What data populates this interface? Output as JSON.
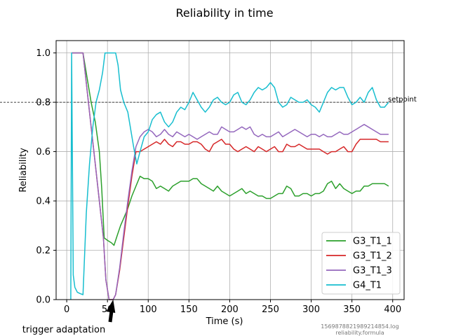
{
  "chart_data": {
    "type": "line",
    "title": "Reliability in time",
    "xlabel": "Time (s)",
    "ylabel": "Reliability",
    "xlim": [
      -13,
      414
    ],
    "ylim": [
      0.0,
      1.05
    ],
    "xticks": [
      0,
      50,
      100,
      150,
      200,
      250,
      300,
      350,
      400
    ],
    "xtick_labels": [
      "0",
      "50",
      "100",
      "150",
      "200",
      "250",
      "300",
      "350",
      "400"
    ],
    "yticks": [
      0.0,
      0.2,
      0.4,
      0.6,
      0.8,
      1.0
    ],
    "ytick_labels": [
      "0.0",
      "0.2",
      "0.4",
      "0.6",
      "0.8",
      "1.0"
    ],
    "grid": true,
    "legend_position": "lower-right",
    "setpoint": {
      "value": 0.8,
      "label": "setpoint"
    },
    "annotation": {
      "text": "trigger adaptation",
      "x": 57,
      "y": 0.0
    },
    "footnote": [
      "1569878821989214854.log",
      "reliability.formula"
    ],
    "series": [
      {
        "name": "G3_T1_1",
        "color": "#2ca02c",
        "x": [
          6,
          8,
          20,
          25,
          30,
          35,
          40,
          43,
          46,
          50,
          55,
          58,
          62,
          66,
          70,
          75,
          80,
          85,
          90,
          95,
          100,
          105,
          110,
          115,
          120,
          125,
          130,
          135,
          140,
          145,
          150,
          155,
          160,
          165,
          170,
          175,
          180,
          185,
          190,
          195,
          200,
          205,
          210,
          215,
          220,
          225,
          230,
          235,
          240,
          245,
          250,
          255,
          260,
          265,
          270,
          275,
          280,
          285,
          290,
          295,
          300,
          305,
          310,
          315,
          320,
          325,
          330,
          335,
          340,
          345,
          350,
          355,
          360,
          365,
          370,
          375,
          380,
          385,
          390,
          395
        ],
        "y": [
          1.0,
          1.0,
          1.0,
          0.9,
          0.8,
          0.72,
          0.6,
          0.45,
          0.25,
          0.24,
          0.23,
          0.22,
          0.26,
          0.3,
          0.33,
          0.37,
          0.42,
          0.46,
          0.5,
          0.49,
          0.49,
          0.48,
          0.45,
          0.46,
          0.45,
          0.44,
          0.46,
          0.47,
          0.48,
          0.48,
          0.48,
          0.49,
          0.49,
          0.47,
          0.46,
          0.45,
          0.44,
          0.46,
          0.44,
          0.43,
          0.42,
          0.43,
          0.44,
          0.45,
          0.43,
          0.44,
          0.43,
          0.42,
          0.42,
          0.41,
          0.41,
          0.42,
          0.43,
          0.43,
          0.46,
          0.45,
          0.42,
          0.42,
          0.43,
          0.43,
          0.42,
          0.43,
          0.43,
          0.44,
          0.47,
          0.48,
          0.45,
          0.47,
          0.45,
          0.44,
          0.43,
          0.44,
          0.44,
          0.46,
          0.46,
          0.47,
          0.47,
          0.47,
          0.47,
          0.46
        ]
      },
      {
        "name": "G3_T1_2",
        "color": "#d62728",
        "x": [
          6,
          8,
          20,
          25,
          30,
          35,
          40,
          45,
          48,
          52,
          55,
          57,
          60,
          65,
          70,
          75,
          80,
          85,
          90,
          95,
          100,
          105,
          110,
          115,
          120,
          125,
          130,
          135,
          140,
          145,
          150,
          155,
          160,
          165,
          170,
          175,
          180,
          185,
          190,
          195,
          200,
          205,
          210,
          215,
          220,
          225,
          230,
          235,
          240,
          245,
          250,
          255,
          260,
          265,
          270,
          275,
          280,
          285,
          290,
          295,
          300,
          305,
          310,
          315,
          320,
          325,
          330,
          335,
          340,
          345,
          350,
          355,
          360,
          365,
          370,
          375,
          380,
          385,
          390,
          395
        ],
        "y": [
          1.0,
          1.0,
          1.0,
          0.85,
          0.7,
          0.55,
          0.4,
          0.25,
          0.08,
          0.0,
          0.0,
          0.0,
          0.02,
          0.12,
          0.25,
          0.38,
          0.5,
          0.6,
          0.6,
          0.61,
          0.62,
          0.63,
          0.64,
          0.63,
          0.65,
          0.63,
          0.62,
          0.64,
          0.64,
          0.63,
          0.63,
          0.64,
          0.64,
          0.63,
          0.61,
          0.6,
          0.63,
          0.64,
          0.65,
          0.63,
          0.63,
          0.61,
          0.6,
          0.61,
          0.62,
          0.61,
          0.6,
          0.62,
          0.61,
          0.6,
          0.61,
          0.62,
          0.6,
          0.6,
          0.63,
          0.62,
          0.62,
          0.63,
          0.62,
          0.61,
          0.61,
          0.61,
          0.61,
          0.6,
          0.59,
          0.6,
          0.6,
          0.61,
          0.62,
          0.6,
          0.6,
          0.63,
          0.65,
          0.65,
          0.65,
          0.65,
          0.65,
          0.64,
          0.64,
          0.64
        ]
      },
      {
        "name": "G3_T1_3",
        "color": "#9467bd",
        "x": [
          6,
          8,
          20,
          25,
          30,
          35,
          40,
          45,
          48,
          52,
          55,
          57,
          60,
          65,
          70,
          75,
          80,
          85,
          90,
          95,
          100,
          105,
          110,
          115,
          120,
          125,
          130,
          135,
          140,
          145,
          150,
          155,
          160,
          165,
          170,
          175,
          180,
          185,
          190,
          195,
          200,
          205,
          210,
          215,
          220,
          225,
          230,
          235,
          240,
          245,
          250,
          255,
          260,
          265,
          270,
          275,
          280,
          285,
          290,
          295,
          300,
          305,
          310,
          315,
          320,
          325,
          330,
          335,
          340,
          345,
          350,
          355,
          360,
          365,
          370,
          375,
          380,
          385,
          390,
          395
        ],
        "y": [
          1.0,
          1.0,
          1.0,
          0.85,
          0.7,
          0.55,
          0.4,
          0.25,
          0.08,
          0.0,
          0.0,
          0.0,
          0.02,
          0.13,
          0.27,
          0.4,
          0.52,
          0.62,
          0.66,
          0.68,
          0.69,
          0.68,
          0.66,
          0.67,
          0.69,
          0.67,
          0.66,
          0.68,
          0.67,
          0.66,
          0.67,
          0.66,
          0.65,
          0.66,
          0.67,
          0.68,
          0.67,
          0.67,
          0.7,
          0.69,
          0.68,
          0.68,
          0.69,
          0.7,
          0.69,
          0.7,
          0.67,
          0.66,
          0.67,
          0.66,
          0.66,
          0.67,
          0.68,
          0.66,
          0.67,
          0.68,
          0.69,
          0.68,
          0.67,
          0.66,
          0.67,
          0.67,
          0.66,
          0.67,
          0.66,
          0.66,
          0.67,
          0.68,
          0.67,
          0.67,
          0.68,
          0.69,
          0.7,
          0.71,
          0.7,
          0.69,
          0.68,
          0.67,
          0.67,
          0.67
        ]
      },
      {
        "name": "G4_T1",
        "color": "#17becf",
        "x": [
          5,
          6,
          8,
          10,
          13,
          16,
          20,
          24,
          28,
          32,
          36,
          40,
          44,
          47,
          50,
          55,
          60,
          63,
          66,
          70,
          75,
          78,
          82,
          86,
          90,
          95,
          100,
          105,
          110,
          115,
          120,
          125,
          130,
          135,
          140,
          145,
          150,
          155,
          160,
          165,
          170,
          175,
          180,
          185,
          190,
          195,
          200,
          205,
          210,
          215,
          220,
          225,
          230,
          235,
          240,
          245,
          250,
          255,
          260,
          265,
          270,
          275,
          280,
          285,
          290,
          295,
          300,
          305,
          310,
          315,
          320,
          325,
          330,
          335,
          340,
          345,
          350,
          355,
          360,
          365,
          370,
          375,
          380,
          385,
          390,
          395
        ],
        "y": [
          0.0,
          1.0,
          0.1,
          0.05,
          0.03,
          0.025,
          0.02,
          0.35,
          0.55,
          0.7,
          0.8,
          0.85,
          0.92,
          1.0,
          1.0,
          1.0,
          1.0,
          0.95,
          0.85,
          0.8,
          0.76,
          0.7,
          0.62,
          0.55,
          0.6,
          0.66,
          0.68,
          0.73,
          0.75,
          0.76,
          0.72,
          0.7,
          0.72,
          0.76,
          0.78,
          0.77,
          0.8,
          0.84,
          0.81,
          0.78,
          0.76,
          0.78,
          0.81,
          0.82,
          0.8,
          0.79,
          0.8,
          0.83,
          0.84,
          0.8,
          0.79,
          0.81,
          0.84,
          0.86,
          0.85,
          0.86,
          0.88,
          0.86,
          0.8,
          0.78,
          0.79,
          0.82,
          0.81,
          0.8,
          0.8,
          0.81,
          0.79,
          0.78,
          0.76,
          0.8,
          0.84,
          0.86,
          0.85,
          0.86,
          0.86,
          0.82,
          0.79,
          0.8,
          0.82,
          0.8,
          0.84,
          0.86,
          0.81,
          0.78,
          0.78,
          0.8
        ]
      }
    ]
  }
}
